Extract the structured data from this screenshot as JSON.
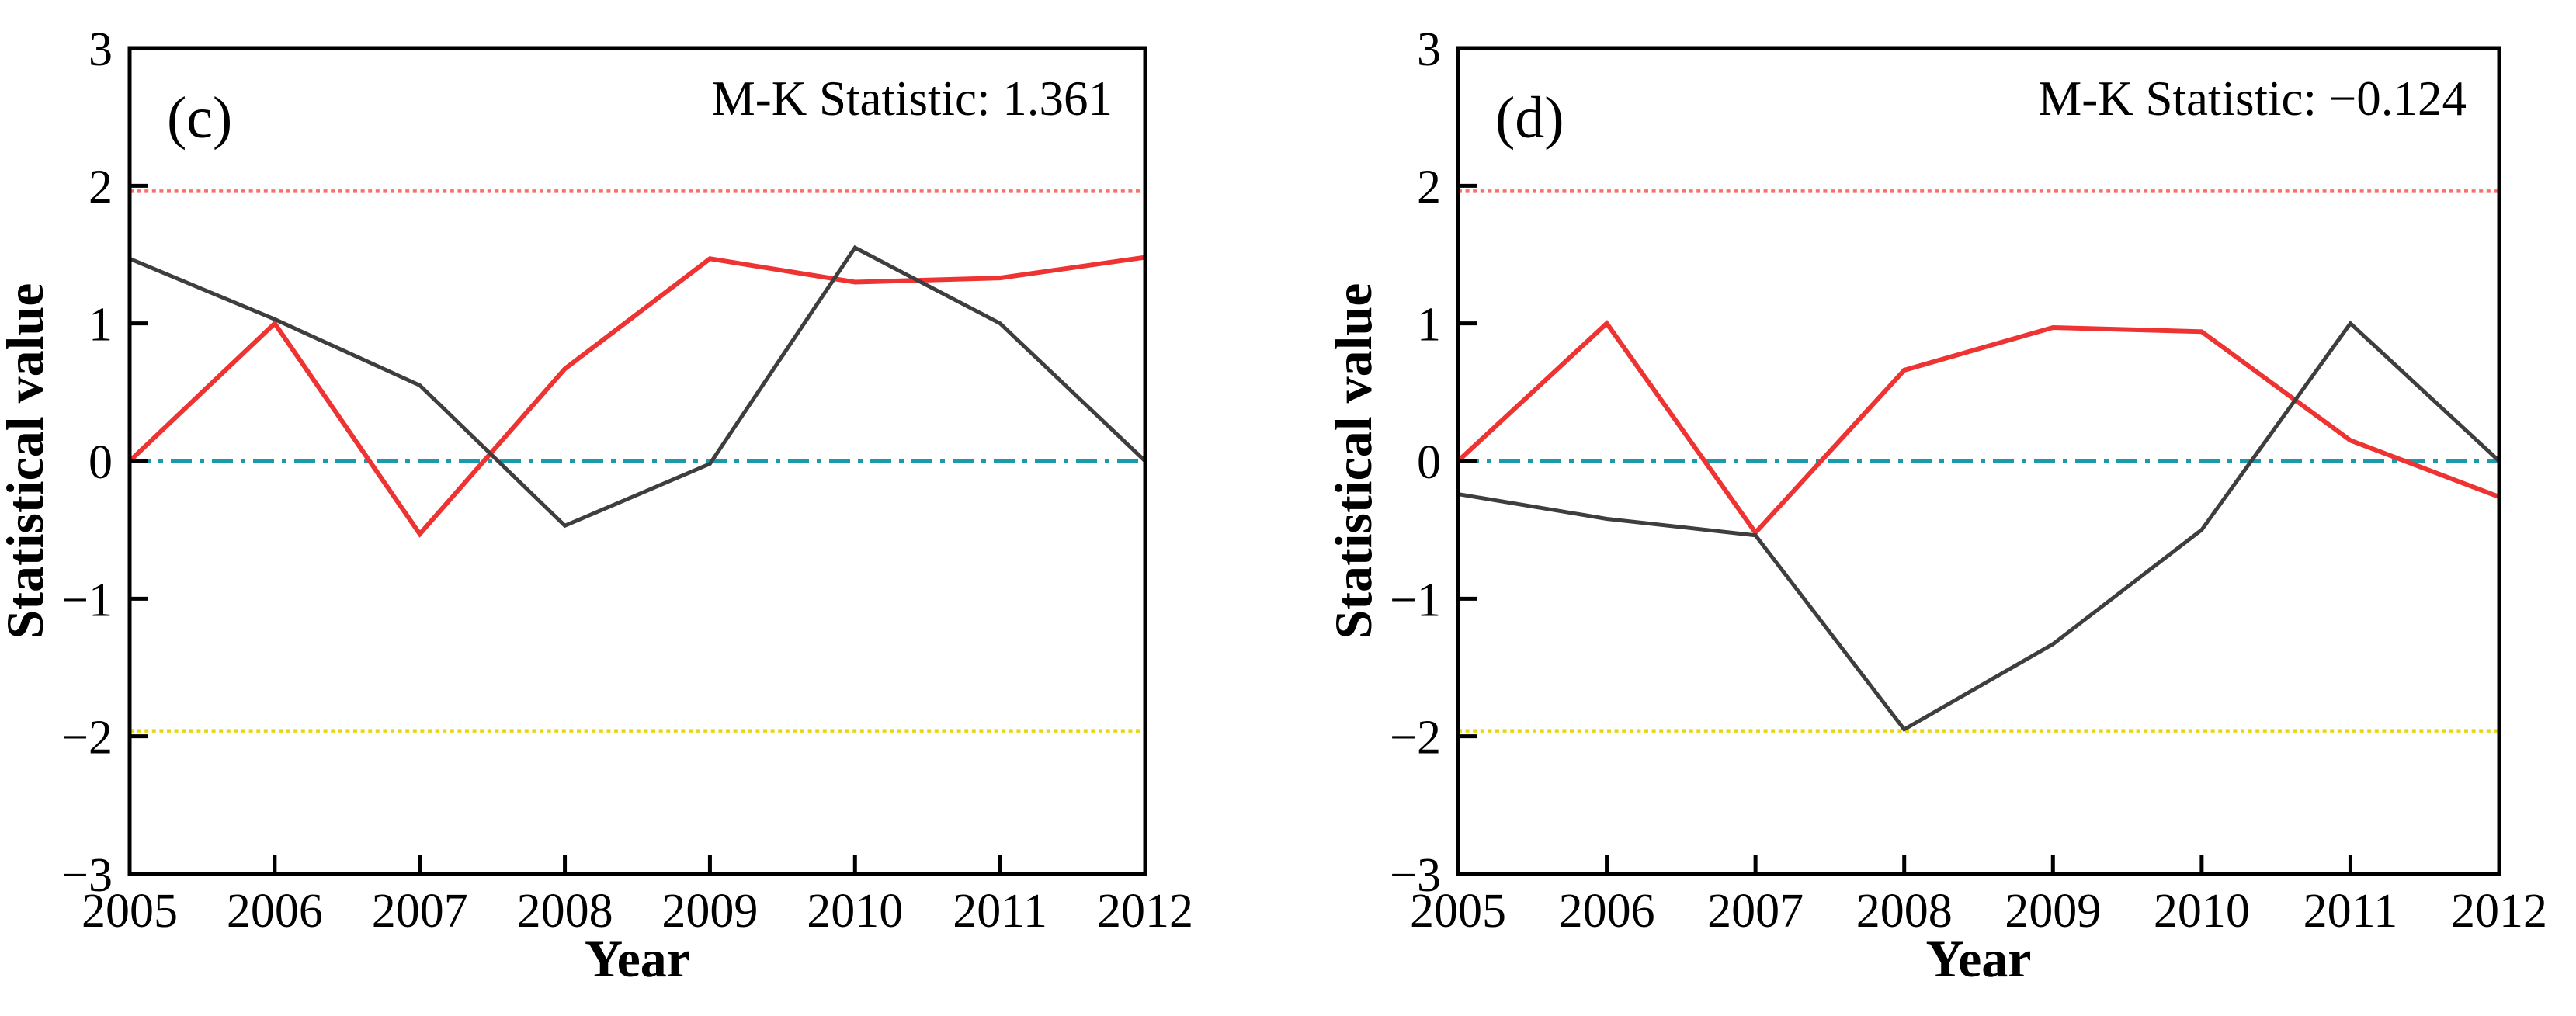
{
  "figure": {
    "background": "#ffffff",
    "text_color": "#000000"
  },
  "chart_data": [
    {
      "type": "line",
      "panel_label": "(c)",
      "annotation": "M-K Statistic: 1.361",
      "xlabel": "Year",
      "ylabel": "Statistical value",
      "x": [
        2005,
        2006,
        2007,
        2008,
        2009,
        2010,
        2011,
        2012
      ],
      "x_tick_labels": [
        "2005",
        "2006",
        "2007",
        "2008",
        "2009",
        "2010",
        "2011",
        "2012"
      ],
      "y_ticks": [
        3,
        2,
        1,
        0,
        -1,
        -2,
        -3
      ],
      "y_tick_labels": [
        "3",
        "2",
        "1",
        "0",
        "−1",
        "−2",
        "−3"
      ],
      "ylim": [
        -3,
        3
      ],
      "grid": "off",
      "legend": "none",
      "series": [
        {
          "name": "red-statistic-curve",
          "color": "#ee3333",
          "width": 6,
          "values": [
            0,
            1.0,
            -0.53,
            0.67,
            1.47,
            1.3,
            1.33,
            1.48
          ]
        },
        {
          "name": "black-statistic-curve",
          "color": "#3e3e3e",
          "width": 5,
          "values": [
            1.47,
            1.03,
            0.55,
            -0.47,
            -0.02,
            1.55,
            1.0,
            0.0
          ]
        }
      ],
      "ref_lines": [
        {
          "name": "upper-critical-line",
          "y": 1.96,
          "color": "#f9706a",
          "style": "dotted"
        },
        {
          "name": "zero-line",
          "y": 0,
          "color": "#1a9aab",
          "style": "dashdot"
        },
        {
          "name": "lower-critical-line",
          "y": -1.96,
          "color": "#e8d814",
          "style": "dotted"
        }
      ]
    },
    {
      "type": "line",
      "panel_label": "(d)",
      "annotation": "M-K Statistic: −0.124",
      "xlabel": "Year",
      "ylabel": "Statistical value",
      "x": [
        2005,
        2006,
        2007,
        2008,
        2009,
        2010,
        2011,
        2012
      ],
      "x_tick_labels": [
        "2005",
        "2006",
        "2007",
        "2008",
        "2009",
        "2010",
        "2011",
        "2012"
      ],
      "y_ticks": [
        3,
        2,
        1,
        0,
        -1,
        -2,
        -3
      ],
      "y_tick_labels": [
        "3",
        "2",
        "1",
        "0",
        "−1",
        "−2",
        "−3"
      ],
      "ylim": [
        -3,
        3
      ],
      "grid": "off",
      "legend": "none",
      "series": [
        {
          "name": "red-statistic-curve",
          "color": "#ee3333",
          "width": 6,
          "values": [
            0,
            1.0,
            -0.52,
            0.66,
            0.97,
            0.94,
            0.15,
            -0.26
          ]
        },
        {
          "name": "black-statistic-curve",
          "color": "#3e3e3e",
          "width": 5,
          "values": [
            -0.24,
            -0.42,
            -0.54,
            -1.95,
            -1.33,
            -0.5,
            1.0,
            0.0
          ]
        }
      ],
      "ref_lines": [
        {
          "name": "upper-critical-line",
          "y": 1.96,
          "color": "#f9706a",
          "style": "dotted"
        },
        {
          "name": "zero-line",
          "y": 0,
          "color": "#1a9aab",
          "style": "dashdot"
        },
        {
          "name": "lower-critical-line",
          "y": -1.96,
          "color": "#e8d814",
          "style": "dotted"
        }
      ]
    }
  ]
}
